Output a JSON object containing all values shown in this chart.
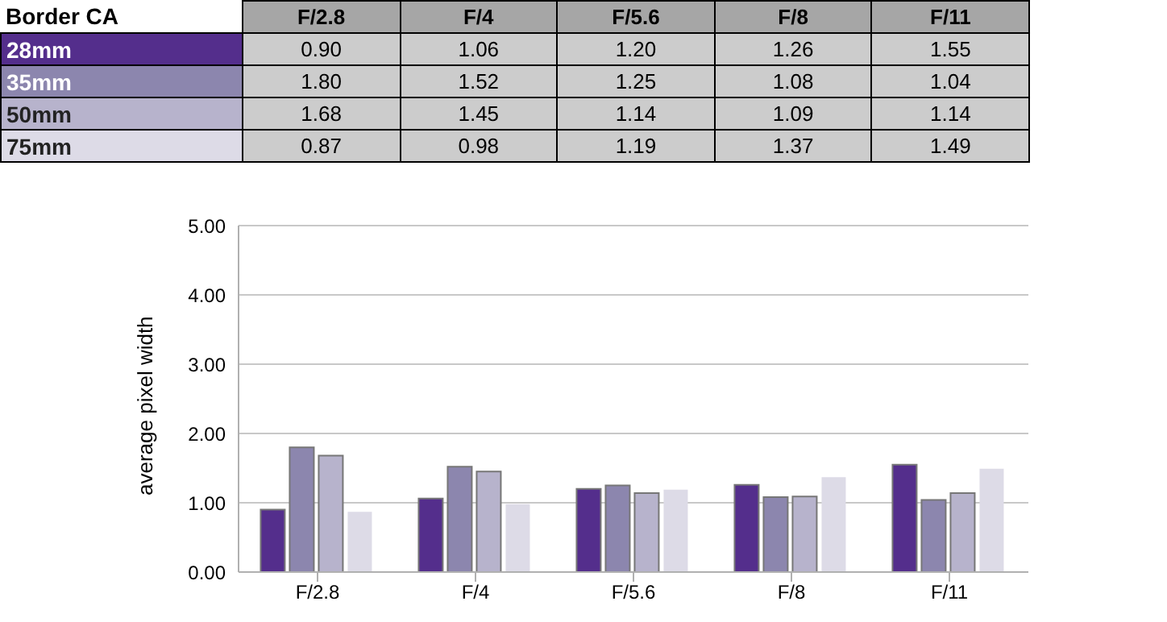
{
  "chart_data": {
    "type": "bar",
    "title": "Border CA",
    "ylabel": "average pixel width",
    "categories": [
      "F/2.8",
      "F/4",
      "F/5.6",
      "F/8",
      "F/11"
    ],
    "series": [
      {
        "name": "28mm",
        "color": "#542e8c",
        "values": [
          0.9,
          1.06,
          1.2,
          1.26,
          1.55
        ],
        "value_labels": [
          "0.90",
          "1.06",
          "1.20",
          "1.26",
          "1.55"
        ]
      },
      {
        "name": "35mm",
        "color": "#8c86ae",
        "values": [
          1.8,
          1.52,
          1.25,
          1.08,
          1.04
        ],
        "value_labels": [
          "1.80",
          "1.52",
          "1.25",
          "1.08",
          "1.04"
        ]
      },
      {
        "name": "50mm",
        "color": "#b7b3cc",
        "values": [
          1.68,
          1.45,
          1.14,
          1.09,
          1.14
        ],
        "value_labels": [
          "1.68",
          "1.45",
          "1.14",
          "1.09",
          "1.14"
        ]
      },
      {
        "name": "75mm",
        "color": "#dddbe7",
        "values": [
          0.87,
          0.98,
          1.19,
          1.37,
          1.49
        ],
        "value_labels": [
          "0.87",
          "0.98",
          "1.19",
          "1.37",
          "1.49"
        ]
      }
    ],
    "ylim": [
      0,
      5
    ],
    "yticks": [
      {
        "value": 0,
        "label": "0.00"
      },
      {
        "value": 1,
        "label": "1.00"
      },
      {
        "value": 2,
        "label": "2.00"
      },
      {
        "value": 3,
        "label": "3.00"
      },
      {
        "value": 4,
        "label": "4.00"
      },
      {
        "value": 5,
        "label": "5.00"
      }
    ],
    "grid": "y"
  }
}
